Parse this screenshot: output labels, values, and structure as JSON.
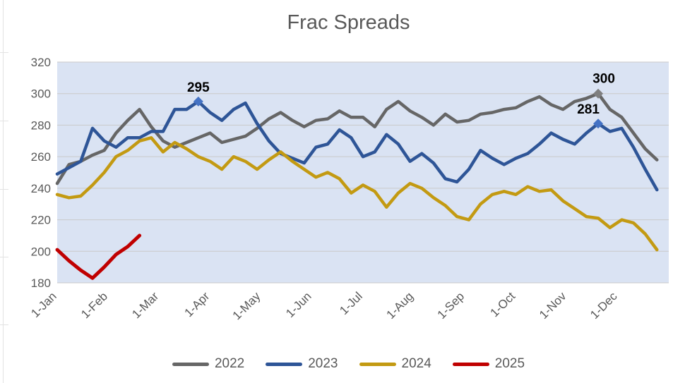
{
  "chart_data": {
    "type": "line",
    "title": "Frac Spreads",
    "xlabel": "",
    "ylabel": "",
    "ylim": [
      180,
      320
    ],
    "y_ticks": [
      180,
      200,
      220,
      240,
      260,
      280,
      300,
      320
    ],
    "x_ticks": [
      "1-Jan",
      "1-Feb",
      "1-Mar",
      "1-Apr",
      "1-May",
      "1-Jun",
      "1-Jul",
      "1-Aug",
      "1-Sep",
      "1-Oct",
      "1-Nov",
      "1-Dec"
    ],
    "x_unit": "week",
    "x_range": [
      0,
      52
    ],
    "grid": true,
    "legend_position": "bottom",
    "background_color": "#dae3f3",
    "series": [
      {
        "name": "2022",
        "color": "#666666",
        "values": [
          243,
          255,
          257,
          261,
          264,
          275,
          283,
          290,
          279,
          270,
          266,
          269,
          272,
          275,
          269,
          271,
          273,
          278,
          284,
          288,
          283,
          279,
          283,
          284,
          289,
          285,
          285,
          279,
          290,
          295,
          289,
          285,
          280,
          287,
          282,
          283,
          287,
          288,
          290,
          291,
          295,
          298,
          293,
          290,
          295,
          297,
          300,
          290,
          285,
          275,
          265,
          258
        ]
      },
      {
        "name": "2023",
        "color": "#2e5597",
        "values": [
          249,
          253,
          257,
          278,
          270,
          266,
          272,
          272,
          276,
          276,
          290,
          290,
          295,
          288,
          283,
          290,
          294,
          281,
          270,
          262,
          259,
          256,
          266,
          268,
          277,
          272,
          260,
          263,
          274,
          268,
          257,
          262,
          256,
          246,
          244,
          252,
          264,
          259,
          255,
          259,
          262,
          268,
          275,
          271,
          268,
          275,
          281,
          276,
          278,
          266,
          252,
          239
        ]
      },
      {
        "name": "2024",
        "color": "#c39a12",
        "values": [
          236,
          234,
          235,
          242,
          250,
          260,
          264,
          270,
          272,
          263,
          269,
          265,
          260,
          257,
          252,
          260,
          257,
          252,
          258,
          263,
          257,
          252,
          247,
          250,
          246,
          237,
          242,
          238,
          228,
          237,
          243,
          240,
          234,
          229,
          222,
          220,
          230,
          236,
          238,
          236,
          241,
          238,
          239,
          232,
          227,
          222,
          221,
          215,
          220,
          218,
          211,
          201
        ]
      },
      {
        "name": "2025",
        "color": "#c00000",
        "values": [
          201,
          194,
          188,
          183,
          190,
          198,
          203,
          210
        ]
      }
    ],
    "annotations": [
      {
        "series": "2023",
        "x": 12,
        "y": 295,
        "label": "295"
      },
      {
        "series": "2022",
        "x": 46,
        "y": 300,
        "label": "300"
      },
      {
        "series": "2023",
        "x": 46,
        "y": 281,
        "label": "281"
      }
    ]
  }
}
